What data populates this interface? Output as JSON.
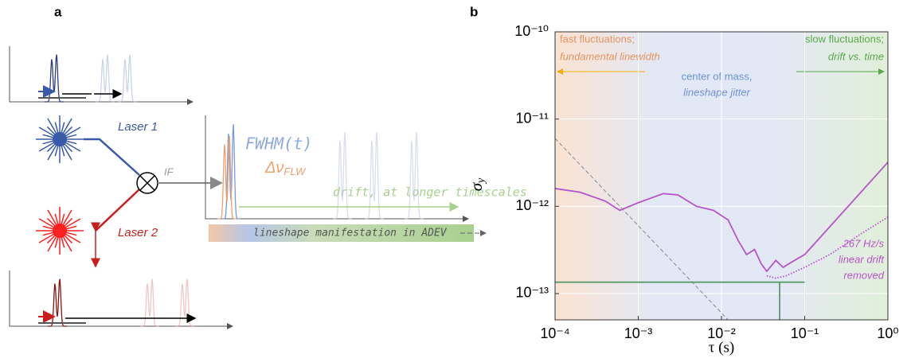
{
  "panel_a": {
    "label": "a",
    "laser1": "Laser 1",
    "laser2": "Laser 2",
    "if": "IF",
    "fwhm": "FWHM(t)",
    "delta_nu": "Δν",
    "delta_nu_sub": "FLW",
    "drift": "drift, at longer timescales",
    "adev": "lineshape manifestation in ADEV"
  },
  "chart_data": {
    "type": "line",
    "panel_label": "b",
    "xlabel": "τ (s)",
    "ylabel": "σ",
    "ylabel_sub": "y",
    "log_x": true,
    "log_y": true,
    "grid": true,
    "xlim": [
      0.0001,
      1
    ],
    "ylim": [
      5e-14,
      1e-10
    ],
    "xticks": [
      {
        "value": 0.0001,
        "label": "10⁻⁴"
      },
      {
        "value": 0.001,
        "label": "10⁻³"
      },
      {
        "value": 0.01,
        "label": "10⁻²"
      },
      {
        "value": 0.1,
        "label": "10⁻¹"
      },
      {
        "value": 1,
        "label": "10⁰"
      }
    ],
    "yticks": [
      {
        "value": 1e-13,
        "label": "10⁻¹³"
      },
      {
        "value": 1e-12,
        "label": "10⁻¹²"
      },
      {
        "value": 1e-11,
        "label": "10⁻¹¹"
      },
      {
        "value": 1e-10,
        "label": "10⁻¹⁰"
      }
    ],
    "series": [
      {
        "color": "#b455c8",
        "style": "solid",
        "x": [
          0.0001,
          0.0002,
          0.0004,
          0.0006,
          0.001,
          0.002,
          0.003,
          0.005,
          0.008,
          0.012,
          0.016,
          0.02,
          0.025,
          0.03,
          0.035,
          0.045,
          0.055,
          0.07,
          0.1,
          1
        ],
        "values": [
          1.6e-12,
          1.45e-12,
          1.15e-12,
          9e-13,
          1.1e-12,
          1.4e-12,
          1.35e-12,
          1e-12,
          9e-13,
          7e-13,
          4e-13,
          2.8e-13,
          3.2e-13,
          2.2e-13,
          1.8e-13,
          2.4e-13,
          2e-13,
          2.3e-13,
          2.8e-13,
          3.2e-12
        ]
      },
      {
        "color": "#b455c8",
        "style": "dotted",
        "x": [
          0.035,
          0.045,
          0.06,
          0.1,
          0.2,
          0.5,
          1
        ],
        "values": [
          1.6e-13,
          1.5e-13,
          1.6e-13,
          2e-13,
          2.8e-13,
          5e-13,
          7.5e-13
        ]
      },
      {
        "color": "#888888",
        "style": "dashed",
        "x": [
          0.0001,
          0.012
        ],
        "values": [
          6e-12,
          5e-14
        ]
      },
      {
        "color": "#5a9a6a",
        "style": "solid",
        "x": [
          0.0001,
          0.1
        ],
        "values": [
          1.35e-13,
          1.35e-13
        ]
      },
      {
        "color": "#5a9a6a",
        "style": "solid",
        "x": [
          0.05,
          0.05
        ],
        "values": [
          1.35e-13,
          5e-14
        ]
      }
    ],
    "annotations": {
      "fast1": "fast fluctuations;",
      "fast2": "fundamental linewidth",
      "com1": "center of mass,",
      "com2": "lineshape jitter",
      "slow1": "slow fluctuations;",
      "slow2": "drift vs. time",
      "drift1": "267 Hz/s",
      "drift2": "linear drift",
      "drift3": "removed"
    }
  }
}
